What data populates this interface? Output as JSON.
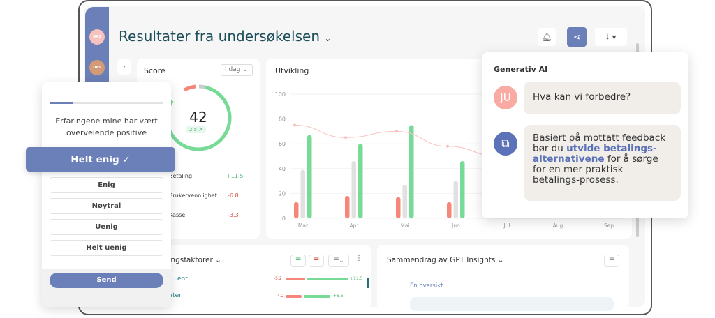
{
  "header": {
    "title": "Resultater fra undersøkelsen",
    "title_chevron_icon": "chevron-down-icon"
  },
  "sidebar": {
    "avatars": [
      {
        "label": "DAS",
        "color": "#f6c2bd",
        "badge_icon": "lock-icon"
      },
      {
        "label": "DAS",
        "color": "#d39a76",
        "badge_icon": "users-icon"
      }
    ],
    "bottom_icon": "document-icon"
  },
  "toolbar": {
    "bell_icon": "bell-icon",
    "share_icon": "share-icon",
    "download_icon": "download-icon",
    "accent": "#6b7fb8"
  },
  "score": {
    "title": "Score",
    "period": "I dag",
    "value": "42",
    "change": "2.5",
    "change_icon": "arrow-up-right-icon",
    "factors": [
      {
        "label": "Betaling",
        "value": "+11.5"
      },
      {
        "label": "Brukervennlighet",
        "value": "-6.8"
      },
      {
        "label": "Kasse",
        "value": "-3.3"
      }
    ]
  },
  "chart_data": {
    "type": "bar",
    "title": "Utvikling",
    "categories": [
      "Mar",
      "Apr",
      "Mai",
      "Jun",
      "Jul",
      "Aug",
      "Sep"
    ],
    "ylim": [
      0,
      100
    ],
    "yticks": [
      0,
      20,
      40,
      60,
      80,
      100
    ],
    "grid": true,
    "series": [
      {
        "color": "#f7867a",
        "values": [
          13,
          18,
          17,
          13,
          null,
          null,
          null
        ]
      },
      {
        "color": "#e1e1e1",
        "values": [
          39,
          46,
          27,
          30,
          null,
          null,
          null
        ]
      },
      {
        "color": "#77da97",
        "values": [
          67,
          60,
          75,
          46,
          null,
          null,
          null
        ]
      }
    ],
    "line": {
      "color": "#f9c2bd",
      "values": [
        75,
        65,
        70,
        58,
        50,
        null,
        null
      ]
    }
  },
  "survey": {
    "progress": 0.2,
    "question": "Erfaringene mine har vært overveiende positive",
    "selected": "Helt enig",
    "options": [
      "Enig",
      "Nøytral",
      "Uenig",
      "Helt uenig"
    ],
    "send": "Send"
  },
  "drivers": {
    "title": "…ingsfaktorer",
    "rows": [
      {
        "label": "…ent",
        "neg": "-5.2",
        "pos": "+11.5",
        "negv": 5.2,
        "posv": 11.5
      },
      {
        "label": "Oppdater",
        "neg": "-4.2",
        "pos": "+6.6",
        "negv": 4.2,
        "posv": 6.6
      }
    ]
  },
  "insights": {
    "title": "Sammendrag av GPT Insights",
    "subtitle": "En oversikt"
  },
  "genai": {
    "title": "Generativ AI",
    "user_initials": "JU",
    "question": "Hva kan vi forbedre?",
    "answer_pre": "Basiert på mottatt feedback bør du ",
    "answer_link": "utvide betalings-alternativene",
    "answer_post": " for å sørge for en mer praktisk betalings-prosess."
  }
}
